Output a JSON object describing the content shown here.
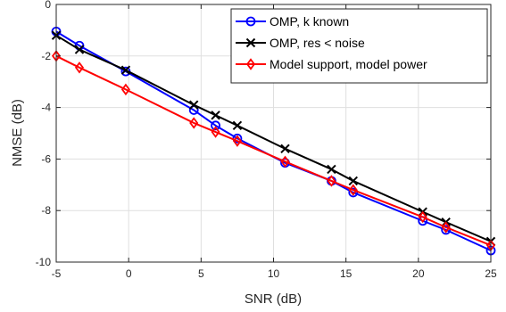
{
  "chart_data": {
    "type": "line",
    "title": "",
    "xlabel": "SNR (dB)",
    "ylabel": "NMSE (dB)",
    "xlim": [
      -5,
      25
    ],
    "ylim": [
      -10,
      0
    ],
    "xticks": [
      -5,
      0,
      5,
      10,
      15,
      20,
      25
    ],
    "yticks": [
      0,
      -2,
      -4,
      -6,
      -8,
      -10
    ],
    "grid": true,
    "legend_position": "top-right",
    "series": [
      {
        "name": "OMP, k known",
        "color": "#0000ff",
        "marker": "circle",
        "x": [
          -5,
          -3.4,
          -0.2,
          4.5,
          6,
          7.5,
          10.8,
          14,
          15.5,
          20.3,
          21.9,
          25
        ],
        "y": [
          -1.05,
          -1.6,
          -2.6,
          -4.1,
          -4.7,
          -5.2,
          -6.15,
          -6.85,
          -7.3,
          -8.4,
          -8.75,
          -9.55
        ]
      },
      {
        "name": "OMP, res < noise",
        "color": "#000000",
        "marker": "x",
        "x": [
          -5,
          -3.4,
          -0.2,
          4.5,
          6,
          7.5,
          10.8,
          14,
          15.5,
          20.3,
          21.9,
          25
        ],
        "y": [
          -1.2,
          -1.75,
          -2.55,
          -3.9,
          -4.3,
          -4.7,
          -5.6,
          -6.4,
          -6.85,
          -8.05,
          -8.45,
          -9.2
        ]
      },
      {
        "name": "Model support, model power",
        "color": "#ff0000",
        "marker": "diamond",
        "x": [
          -5,
          -3.4,
          -0.2,
          4.5,
          6,
          7.5,
          10.8,
          14,
          15.5,
          20.3,
          21.9,
          25
        ],
        "y": [
          -2.0,
          -2.45,
          -3.3,
          -4.6,
          -4.95,
          -5.3,
          -6.1,
          -6.85,
          -7.2,
          -8.25,
          -8.65,
          -9.35
        ]
      }
    ]
  }
}
